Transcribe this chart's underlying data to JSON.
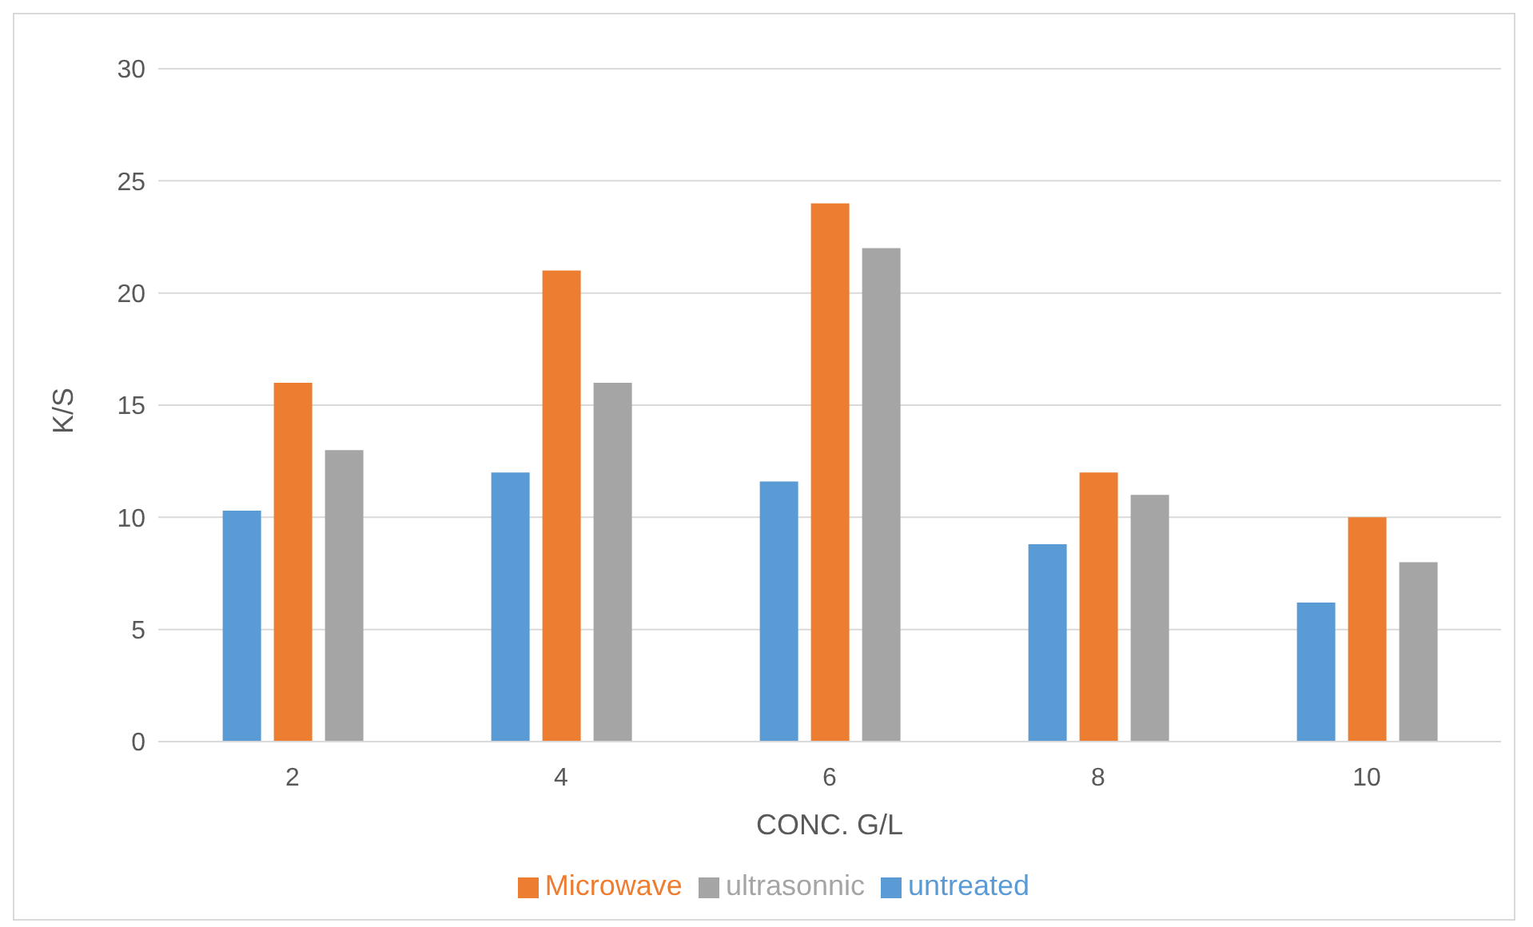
{
  "chart_data": {
    "type": "bar",
    "xlabel": "CONC. G/L",
    "ylabel": "K/S",
    "categories": [
      "2",
      "4",
      "6",
      "8",
      "10"
    ],
    "series": [
      {
        "name": "untreated",
        "color": "#5b9bd5",
        "values": [
          10.3,
          12,
          11.6,
          8.8,
          6.2
        ]
      },
      {
        "name": "Microwave",
        "color": "#ed7d31",
        "values": [
          16,
          21,
          24,
          12,
          10
        ]
      },
      {
        "name": "ultrasonnic",
        "color": "#a5a5a5",
        "values": [
          13,
          16,
          22,
          11,
          8
        ]
      }
    ],
    "ylim": [
      0,
      30
    ],
    "yticks": [
      0,
      5,
      10,
      15,
      20,
      25,
      30
    ],
    "grid": "y",
    "legend": "bottom"
  }
}
